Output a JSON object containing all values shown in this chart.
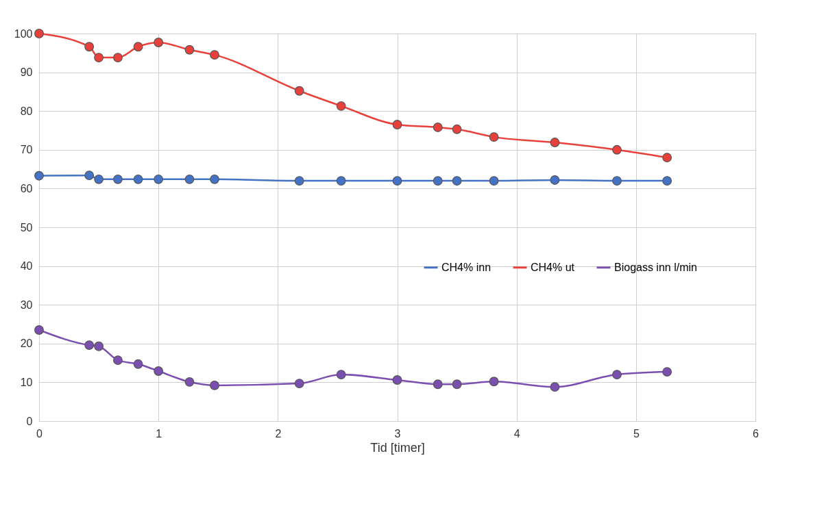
{
  "chart_data": {
    "type": "line",
    "xlabel": "Tid [timer]",
    "x": [
      0,
      0.42,
      0.5,
      0.66,
      0.83,
      1.0,
      1.26,
      1.47,
      2.18,
      2.53,
      3.0,
      3.34,
      3.5,
      3.81,
      4.32,
      4.84,
      5.26
    ],
    "series": [
      {
        "name": "CH4% inn",
        "color": "#4472c4",
        "values": [
          63.3,
          63.4,
          62.4,
          62.4,
          62.4,
          62.4,
          62.4,
          62.4,
          62.0,
          62.0,
          62.0,
          62.0,
          62.0,
          62.0,
          62.2,
          62.0,
          62.0
        ]
      },
      {
        "name": "CH4% ut",
        "color": "#e8413c",
        "values": [
          100,
          96.6,
          93.8,
          93.8,
          96.6,
          97.7,
          95.8,
          94.5,
          85.2,
          81.3,
          76.5,
          75.8,
          75.3,
          73.3,
          71.9,
          70.0,
          68.0
        ]
      },
      {
        "name": "Biogass inn l/min",
        "color": "#7b4fb0",
        "values": [
          23.5,
          19.6,
          19.3,
          15.7,
          14.7,
          12.9,
          10.1,
          9.2,
          9.7,
          12.0,
          10.6,
          9.5,
          9.5,
          10.2,
          8.8,
          12.0,
          12.7
        ]
      }
    ],
    "xlim": [
      0,
      6
    ],
    "xticks": [
      0,
      1,
      2,
      3,
      4,
      5,
      6
    ],
    "ylim": [
      0,
      100
    ],
    "yticks": [
      0,
      10,
      20,
      30,
      40,
      50,
      60,
      70,
      80,
      90,
      100
    ],
    "grid": true,
    "legend": "right",
    "marker": "circle",
    "line_style": "solid"
  }
}
